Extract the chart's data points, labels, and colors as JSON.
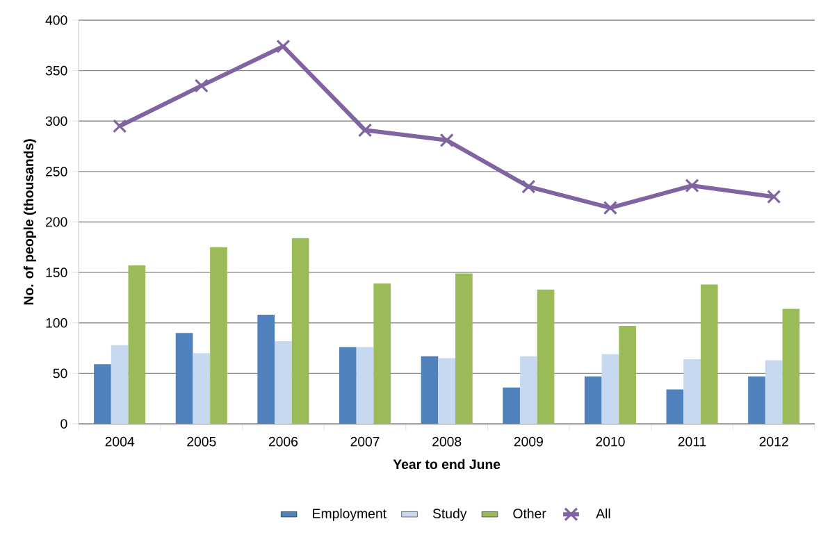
{
  "chart_data": {
    "type": "bar",
    "xlabel": "Year to end June",
    "ylabel": "No. of people (thousands)",
    "categories": [
      "2004",
      "2005",
      "2006",
      "2007",
      "2008",
      "2009",
      "2010",
      "2011",
      "2012"
    ],
    "series": [
      {
        "name": "Employment",
        "color": "#4f81bd",
        "values": [
          59,
          90,
          108,
          76,
          67,
          36,
          47,
          34,
          47
        ]
      },
      {
        "name": "Study",
        "color": "#c6d9f1",
        "values": [
          78,
          70,
          82,
          76,
          65,
          67,
          69,
          64,
          63
        ]
      },
      {
        "name": "Other",
        "color": "#9bbb59",
        "values": [
          157,
          175,
          184,
          139,
          149,
          133,
          97,
          138,
          114
        ]
      },
      {
        "name": "All",
        "type": "line",
        "color": "#8064a2",
        "marker": "cross",
        "values": [
          295,
          335,
          374,
          291,
          281,
          235,
          214,
          236,
          225
        ]
      }
    ],
    "ylim": [
      0,
      400
    ],
    "yticks": [
      0,
      50,
      100,
      150,
      200,
      250,
      300,
      350,
      400
    ],
    "grid": "y",
    "legend": "bottom"
  }
}
